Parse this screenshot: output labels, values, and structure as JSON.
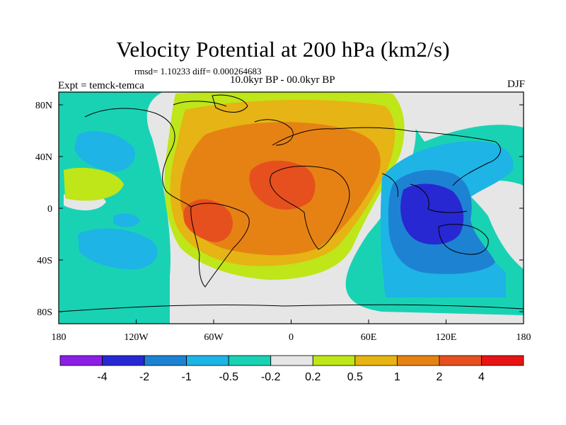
{
  "title": "Velocity Potential at 200 hPa (km2/s)",
  "stats_line": "rmsd= 1.10233 diff= 0.000264683",
  "period": "10.0kyr BP - 00.0kyr BP",
  "experiment": "Expt = temck-temca",
  "season": "DJF",
  "map": {
    "projection": "cylindrical equidistant",
    "lon_range": [
      -180,
      180
    ],
    "lat_range": [
      -90,
      90
    ],
    "x_ticks": [
      "180",
      "120W",
      "60W",
      "0",
      "60E",
      "120E",
      "180"
    ],
    "y_ticks": [
      "80N",
      "40N",
      "0",
      "40S",
      "80S"
    ]
  },
  "colorbar": {
    "colors": [
      "#8c1ee6",
      "#2828d2",
      "#1e82d2",
      "#1eb4e6",
      "#19d2b4",
      "#e6e6e6",
      "#bee619",
      "#e6b414",
      "#e68214",
      "#e6501e",
      "#e61414"
    ],
    "labels": [
      "-4",
      "-2",
      "-1",
      "-0.5",
      "-0.2",
      "0.2",
      "0.5",
      "1",
      "2",
      "4"
    ]
  }
}
